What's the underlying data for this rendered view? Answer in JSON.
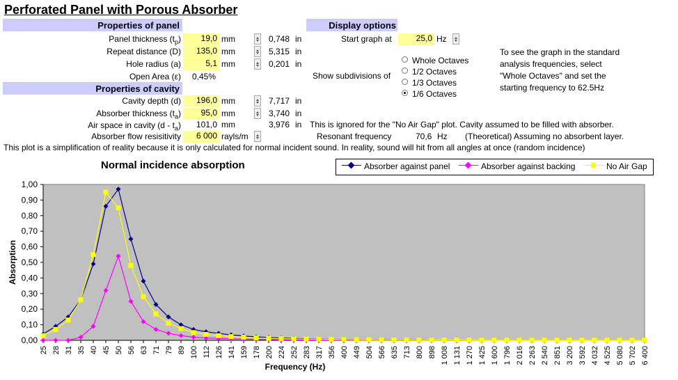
{
  "title": "Perforated Panel with Porous Absorber",
  "panel": {
    "header": "Properties of panel",
    "thickness": {
      "label_prefix": "Panel thickness (t",
      "label_sub": "p",
      "label_suffix": ")",
      "value": "19,0",
      "unit": "mm",
      "imperial": "0,748",
      "imperial_unit": "in"
    },
    "repeat": {
      "label": "Repeat distance (D)",
      "value": "135,0",
      "unit": "mm",
      "imperial": "5,315",
      "imperial_unit": "in"
    },
    "hole": {
      "label": "Hole radius (a)",
      "value": "5,1",
      "unit": "mm",
      "imperial": "0,201",
      "imperial_unit": "in"
    },
    "open_area": {
      "label": "Open Area (ε)",
      "value": "0,45%"
    }
  },
  "cavity": {
    "header": "Properties of cavity",
    "depth": {
      "label": "Cavity depth (d)",
      "value": "196,0",
      "unit": "mm",
      "imperial": "7,717",
      "imperial_unit": "in"
    },
    "absorber": {
      "label_prefix": "Absorber thickness (t",
      "label_sub": "a",
      "label_suffix": ")",
      "value": "95,0",
      "unit": "mm",
      "imperial": "3,740",
      "imperial_unit": "in"
    },
    "airspace": {
      "label_prefix": "Air space in cavity (d - t",
      "label_sub": "a",
      "label_suffix": ")",
      "value": "101,0",
      "unit": "mm",
      "imperial": "3,976",
      "imperial_unit": "in"
    },
    "flow": {
      "label": "Absorber flow resisitivity",
      "value": "6 000",
      "unit": "rayls/m"
    }
  },
  "display": {
    "header": "Display options",
    "start_label": "Start graph at",
    "start_value": "25,0",
    "start_unit": "Hz",
    "subdiv_label": "Show subdivisions of",
    "options": [
      "Whole Octaves",
      "1/2 Octaves",
      "1/3 Octaves",
      "1/6 Octaves"
    ],
    "selected_option": "1/6 Octaves",
    "help_lines": [
      "To see the graph in the standard",
      "analysis frequencies, select",
      "\"Whole Octaves\" and set the",
      "starting frequency to 62.5Hz"
    ]
  },
  "notes": {
    "ignored": "This is ignored for the \"No Air Gap\" plot.  Cavity assumed to be filled with absorber.",
    "resonant_label": "Resonant frequency",
    "resonant_value": "70,6",
    "resonant_unit": "Hz",
    "resonant_note": "(Theoretical) Assuming no absorbent layer.",
    "simplification": "This plot is a simplification of reality because it is only calculated for normal incident sound.  In reality, sound will hit from all angles at once (random incidence)"
  },
  "colors": {
    "plot_bg": "#c0c0c0",
    "panel": "#000080",
    "backing": "#ff00ff",
    "noairgap": "#ffff00",
    "highlight": "#ffff99",
    "header_bg": "#ccccff"
  },
  "chart_data": {
    "type": "line",
    "title": "Normal incidence absorption",
    "xlabel": "Frequency (Hz)",
    "ylabel": "Absorption",
    "ylim": [
      0,
      1
    ],
    "yticks": [
      "0,00",
      "0,10",
      "0,20",
      "0,30",
      "0,40",
      "0,50",
      "0,60",
      "0,70",
      "0,80",
      "0,90",
      "1,00"
    ],
    "categories": [
      "25",
      "28",
      "31",
      "35",
      "40",
      "45",
      "50",
      "56",
      "63",
      "71",
      "79",
      "89",
      "100",
      "112",
      "126",
      "141",
      "159",
      "178",
      "200",
      "224",
      "252",
      "283",
      "317",
      "356",
      "400",
      "449",
      "504",
      "566",
      "635",
      "713",
      "800",
      "898",
      "1 008",
      "1 131",
      "1 270",
      "1 425",
      "1 600",
      "1 796",
      "2 016",
      "2 263",
      "2 540",
      "2 851",
      "3 200",
      "3 592",
      "4 032",
      "4 525",
      "5 080",
      "5 702",
      "6 400"
    ],
    "grid": false,
    "legend": "top-right",
    "series": [
      {
        "name": "Absorber against panel",
        "values": [
          0.04,
          0.09,
          0.15,
          0.26,
          0.49,
          0.86,
          0.97,
          0.65,
          0.38,
          0.23,
          0.15,
          0.1,
          0.07,
          0.055,
          0.045,
          0.035,
          0.028,
          0.022,
          0.018,
          0.015,
          0.012,
          0.01,
          0.008,
          0.007,
          0.006,
          0.005,
          0.004,
          0.004,
          0.003,
          0.003,
          0.003,
          0.002,
          0.002,
          0.002,
          0.002,
          0.002,
          0.001,
          0.001,
          0.001,
          0.001,
          0.001,
          0.001,
          0.001,
          0.001,
          0.001,
          0.001,
          0.001,
          0.001,
          0.001
        ]
      },
      {
        "name": "Absorber against backing",
        "values": [
          0,
          0,
          0,
          0.02,
          0.09,
          0.32,
          0.54,
          0.25,
          0.12,
          0.07,
          0.045,
          0.03,
          0.02,
          0.015,
          0.012,
          0.01,
          0.008,
          0.006,
          0.005,
          0.004,
          0.003,
          0.003,
          0.002,
          0.002,
          0.002,
          0.001,
          0.001,
          0.001,
          0.001,
          0.001,
          0.001,
          0.001,
          0.001,
          0.001,
          0.001,
          0.001,
          0.001,
          0.001,
          0.001,
          0.001,
          0.001,
          0.001,
          0.001,
          0.001,
          0.001,
          0.001,
          0.001,
          0.001,
          0.001
        ]
      },
      {
        "name": "No Air Gap",
        "values": [
          0.03,
          0.07,
          0.13,
          0.26,
          0.55,
          0.95,
          0.85,
          0.48,
          0.28,
          0.17,
          0.11,
          0.075,
          0.05,
          0.038,
          0.03,
          0.024,
          0.02,
          0.016,
          0.013,
          0.011,
          0.009,
          0.008,
          0.007,
          0.006,
          0.005,
          0.004,
          0.004,
          0.003,
          0.003,
          0.003,
          0.002,
          0.002,
          0.002,
          0.002,
          0.002,
          0.001,
          0.001,
          0.001,
          0.001,
          0.001,
          0.001,
          0.001,
          0.001,
          0.001,
          0.001,
          0.001,
          0.001,
          0.001,
          0.001
        ]
      }
    ]
  }
}
